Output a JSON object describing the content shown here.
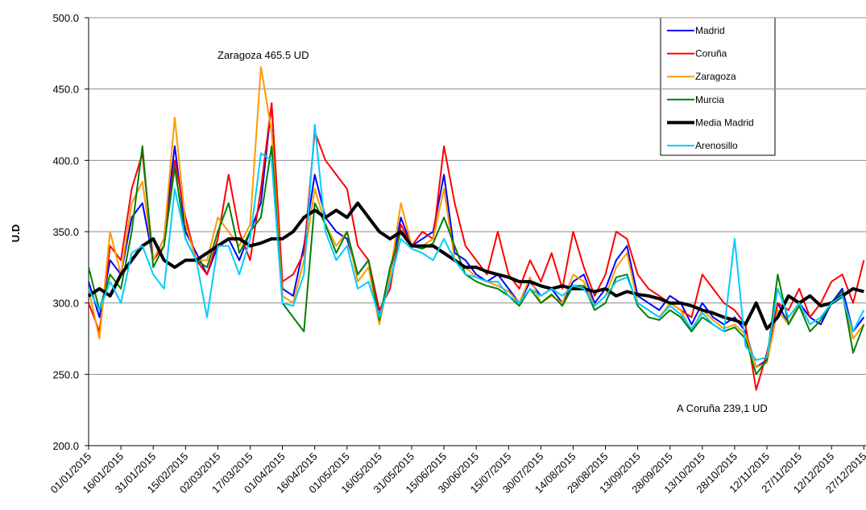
{
  "chart_data": {
    "type": "line",
    "y_axis_label": "U.D",
    "annotations": [
      "Zaragoza 465.5 UD",
      "A Coruña 239,1 UD"
    ],
    "x": [
      "01/01/2015",
      "06/01/2015",
      "11/01/2015",
      "16/01/2015",
      "21/01/2015",
      "26/01/2015",
      "31/01/2015",
      "05/02/2015",
      "10/02/2015",
      "15/02/2015",
      "20/02/2015",
      "25/02/2015",
      "02/03/2015",
      "07/03/2015",
      "12/03/2015",
      "17/03/2015",
      "22/03/2015",
      "27/03/2015",
      "01/04/2015",
      "06/04/2015",
      "11/04/2015",
      "16/04/2015",
      "21/04/2015",
      "26/04/2015",
      "01/05/2015",
      "06/05/2015",
      "11/05/2015",
      "16/05/2015",
      "21/05/2015",
      "26/05/2015",
      "31/05/2015",
      "05/06/2015",
      "10/06/2015",
      "15/06/2015",
      "20/06/2015",
      "25/06/2015",
      "30/06/2015",
      "05/07/2015",
      "10/07/2015",
      "15/07/2015",
      "20/07/2015",
      "25/07/2015",
      "30/07/2015",
      "04/08/2015",
      "09/08/2015",
      "14/08/2015",
      "19/08/2015",
      "24/08/2015",
      "29/08/2015",
      "03/09/2015",
      "08/09/2015",
      "13/09/2015",
      "18/09/2015",
      "23/09/2015",
      "28/09/2015",
      "03/10/2015",
      "08/10/2015",
      "13/10/2015",
      "18/10/2015",
      "23/10/2015",
      "28/10/2015",
      "02/11/2015",
      "07/11/2015",
      "12/11/2015",
      "17/11/2015",
      "22/11/2015",
      "27/11/2015",
      "02/12/2015",
      "07/12/2015",
      "12/12/2015",
      "17/12/2015",
      "22/12/2015",
      "27/12/2015"
    ],
    "xlim": [
      "01/01/2015",
      "28/12/2015"
    ],
    "xticks": [
      "01/01/2015",
      "16/01/2015",
      "31/01/2015",
      "15/02/2015",
      "02/03/2015",
      "17/03/2015",
      "01/04/2015",
      "16/04/2015",
      "01/05/2015",
      "16/05/2015",
      "31/05/2015",
      "15/06/2015",
      "30/06/2015",
      "15/07/2015",
      "30/07/2015",
      "14/08/2015",
      "29/08/2015",
      "13/09/2015",
      "28/09/2015",
      "13/10/2015",
      "28/10/2015",
      "12/11/2015",
      "27/11/2015",
      "12/12/2015",
      "27/12/2015"
    ],
    "ylim": [
      200,
      500
    ],
    "yticks": [
      {
        "value": 200,
        "label": "200.0"
      },
      {
        "value": 250,
        "label": "250.0"
      },
      {
        "value": 300,
        "label": "300.0"
      },
      {
        "value": 350,
        "label": "350.0"
      },
      {
        "value": 400,
        "label": "400.0"
      },
      {
        "value": 450,
        "label": "450.0"
      },
      {
        "value": 500,
        "label": "500.0"
      }
    ],
    "grid": true,
    "legend": "upper right",
    "series": [
      {
        "name": "Madrid",
        "color": "#0000ff",
        "line_width": 2,
        "values": [
          315,
          290,
          330,
          320,
          360,
          370,
          330,
          345,
          410,
          350,
          335,
          320,
          340,
          345,
          330,
          350,
          370,
          440,
          310,
          305,
          340,
          390,
          360,
          350,
          345,
          320,
          330,
          290,
          320,
          360,
          340,
          345,
          350,
          390,
          335,
          330,
          320,
          315,
          320,
          310,
          300,
          315,
          305,
          310,
          300,
          315,
          320,
          300,
          310,
          330,
          340,
          305,
          300,
          295,
          305,
          300,
          285,
          300,
          290,
          285,
          290,
          280,
          255,
          260,
          300,
          285,
          300,
          290,
          285,
          300,
          310,
          280,
          290
        ]
      },
      {
        "name": "Coruña",
        "color": "#ff0000",
        "line_width": 2,
        "values": [
          300,
          280,
          340,
          330,
          380,
          405,
          330,
          340,
          400,
          360,
          330,
          320,
          345,
          390,
          350,
          330,
          380,
          440,
          315,
          320,
          335,
          420,
          400,
          390,
          380,
          340,
          330,
          295,
          310,
          355,
          340,
          350,
          345,
          410,
          370,
          340,
          330,
          320,
          350,
          320,
          310,
          330,
          315,
          335,
          310,
          350,
          325,
          305,
          320,
          350,
          345,
          320,
          310,
          305,
          300,
          295,
          290,
          320,
          310,
          300,
          295,
          285,
          239.1,
          265,
          300,
          295,
          310,
          290,
          300,
          315,
          320,
          300,
          330
        ]
      },
      {
        "name": "Zaragoza",
        "color": "#ff9900",
        "line_width": 2,
        "values": [
          310,
          275,
          350,
          320,
          370,
          385,
          330,
          345,
          430,
          355,
          330,
          330,
          360,
          350,
          340,
          355,
          465.5,
          420,
          305,
          300,
          330,
          380,
          355,
          340,
          350,
          315,
          325,
          285,
          320,
          370,
          340,
          340,
          345,
          380,
          330,
          325,
          318,
          315,
          312,
          308,
          300,
          318,
          300,
          305,
          300,
          320,
          315,
          298,
          305,
          325,
          335,
          300,
          295,
          290,
          300,
          295,
          280,
          295,
          288,
          282,
          285,
          278,
          255,
          258,
          295,
          285,
          300,
          285,
          290,
          300,
          305,
          275,
          285
        ]
      },
      {
        "name": "Murcia",
        "color": "#008000",
        "line_width": 2,
        "values": [
          325,
          295,
          320,
          310,
          350,
          410,
          325,
          340,
          395,
          345,
          330,
          325,
          350,
          370,
          335,
          350,
          360,
          410,
          300,
          290,
          280,
          370,
          355,
          335,
          350,
          320,
          330,
          288,
          325,
          350,
          340,
          338,
          342,
          360,
          340,
          320,
          315,
          312,
          310,
          305,
          298,
          310,
          300,
          306,
          298,
          312,
          312,
          295,
          300,
          318,
          320,
          298,
          290,
          288,
          295,
          290,
          280,
          290,
          285,
          280,
          283,
          275,
          250,
          260,
          320,
          285,
          298,
          280,
          288,
          300,
          308,
          265,
          285
        ]
      },
      {
        "name": "Media Madrid",
        "color": "#000000",
        "line_width": 4,
        "values": [
          305,
          310,
          305,
          320,
          330,
          340,
          345,
          330,
          325,
          330,
          330,
          335,
          340,
          345,
          345,
          340,
          342,
          345,
          345,
          350,
          360,
          365,
          360,
          365,
          360,
          370,
          360,
          350,
          345,
          350,
          340,
          340,
          340,
          335,
          330,
          325,
          325,
          322,
          320,
          318,
          315,
          315,
          312,
          310,
          312,
          310,
          310,
          308,
          310,
          305,
          308,
          306,
          305,
          303,
          300,
          300,
          298,
          295,
          293,
          290,
          288,
          285,
          300,
          282,
          290,
          305,
          300,
          305,
          298,
          300,
          305,
          310,
          308
        ]
      },
      {
        "name": "Arenosillo",
        "color": "#00ccff",
        "line_width": 2,
        "values": [
          310,
          295,
          315,
          300,
          335,
          340,
          320,
          310,
          380,
          345,
          330,
          290,
          340,
          340,
          320,
          345,
          405,
          400,
          300,
          298,
          320,
          425,
          350,
          330,
          340,
          310,
          315,
          290,
          315,
          345,
          338,
          335,
          330,
          345,
          330,
          320,
          318,
          315,
          315,
          305,
          300,
          310,
          305,
          310,
          305,
          312,
          310,
          298,
          305,
          315,
          318,
          300,
          295,
          290,
          298,
          292,
          282,
          293,
          285,
          280,
          345,
          270,
          260,
          262,
          310,
          290,
          300,
          285,
          290,
          300,
          305,
          280,
          295
        ]
      }
    ]
  }
}
